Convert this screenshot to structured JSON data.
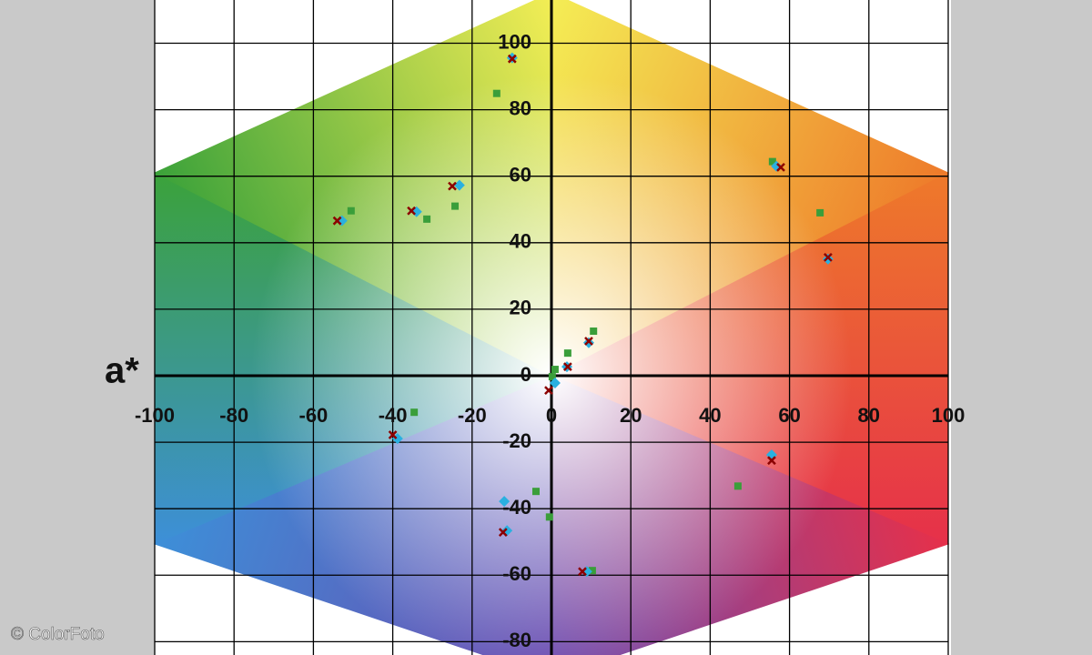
{
  "chart_data": {
    "type": "scatter",
    "xlabel": "a*",
    "watermark": "© ColorFoto",
    "xlim": [
      -100,
      100
    ],
    "ylim": [
      -84,
      113
    ],
    "xticks": [
      -100,
      -80,
      -60,
      -40,
      -20,
      0,
      20,
      40,
      60,
      80,
      100
    ],
    "yticks": [
      -80,
      -60,
      -40,
      -20,
      0,
      20,
      40,
      60,
      80,
      100
    ],
    "grid": true,
    "series": [
      {
        "color": "#3a9e3a",
        "marker": "square",
        "x": [
          -13.8,
          -50.5,
          -31.4,
          -24.3,
          55.7,
          67.7,
          10.6,
          4.1,
          0.9,
          0.2,
          -34.6,
          -3.9,
          -0.5,
          47,
          10.3
        ],
        "values": [
          84.9,
          49.6,
          47.1,
          51,
          64.4,
          49,
          13.4,
          6.8,
          1.9,
          -0.3,
          -11,
          -34.8,
          -42.5,
          -33.2,
          -58.6
        ]
      },
      {
        "color": "#2ab0e0",
        "marker": "diamond",
        "x": [
          -9.9,
          -23.2,
          -34,
          -52.8,
          56.7,
          69.7,
          9.4,
          3.9,
          0.9,
          -38.8,
          55.5,
          -11.9,
          -11.2,
          8.9
        ],
        "values": [
          95.6,
          57.3,
          49.3,
          46.6,
          63,
          35.1,
          9.9,
          2.7,
          -2.2,
          -18.9,
          -23.8,
          -37.8,
          -46.6,
          -58.9
        ]
      },
      {
        "color": "#8b0000",
        "marker": "cross",
        "x": [
          -9.9,
          -25,
          -35.3,
          -54,
          57.8,
          69.7,
          9.4,
          4.1,
          -0.7,
          -40,
          55.5,
          -12.2,
          7.8
        ],
        "values": [
          95.3,
          57,
          49.6,
          46.6,
          62.7,
          35.6,
          10.4,
          2.7,
          -4.4,
          -17.8,
          -25.5,
          -47.1,
          -58.9
        ]
      }
    ]
  }
}
